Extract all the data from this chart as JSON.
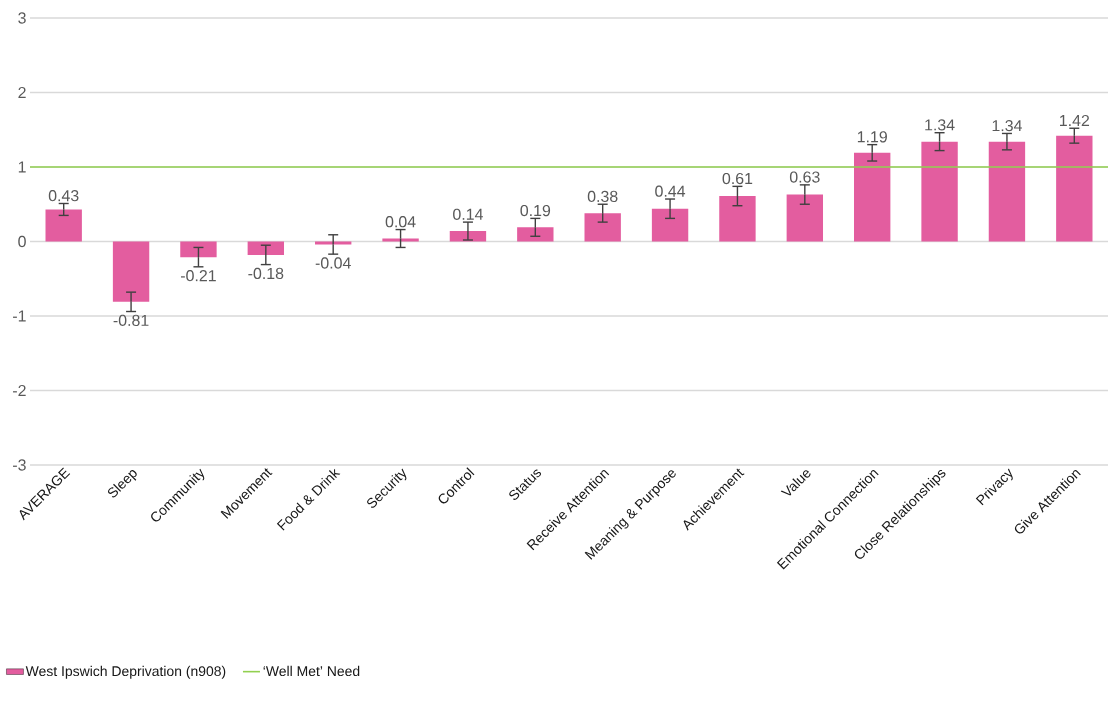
{
  "chart_data": {
    "type": "bar",
    "categories": [
      "AVERAGE",
      "Sleep",
      "Community",
      "Movement",
      "Food & Drink",
      "Security",
      "Control",
      "Status",
      "Receive Attention",
      "Meaning & Purpose",
      "Achievement",
      "Value",
      "Emotional Connection",
      "Close Relationships",
      "Privacy",
      "Give Attention"
    ],
    "series": [
      {
        "name": "West Ipswich Deprivation (n908)",
        "color": "#e35d9f",
        "values": [
          0.43,
          -0.81,
          -0.21,
          -0.18,
          -0.04,
          0.04,
          0.14,
          0.19,
          0.38,
          0.44,
          0.61,
          0.63,
          1.19,
          1.34,
          1.34,
          1.42
        ],
        "errors": [
          0.08,
          0.13,
          0.13,
          0.13,
          0.13,
          0.12,
          0.12,
          0.12,
          0.12,
          0.13,
          0.13,
          0.13,
          0.11,
          0.12,
          0.11,
          0.1
        ]
      }
    ],
    "ylim": [
      -3,
      3
    ],
    "yticks": [
      -3,
      -2,
      -1,
      0,
      1,
      2,
      3
    ],
    "grid": "y",
    "data_labels": true,
    "legend": "bottom",
    "ref_lines": [
      {
        "axis": "y",
        "value": 1,
        "label": "‘Well Met’ Need",
        "color": "#92d050"
      }
    ]
  }
}
